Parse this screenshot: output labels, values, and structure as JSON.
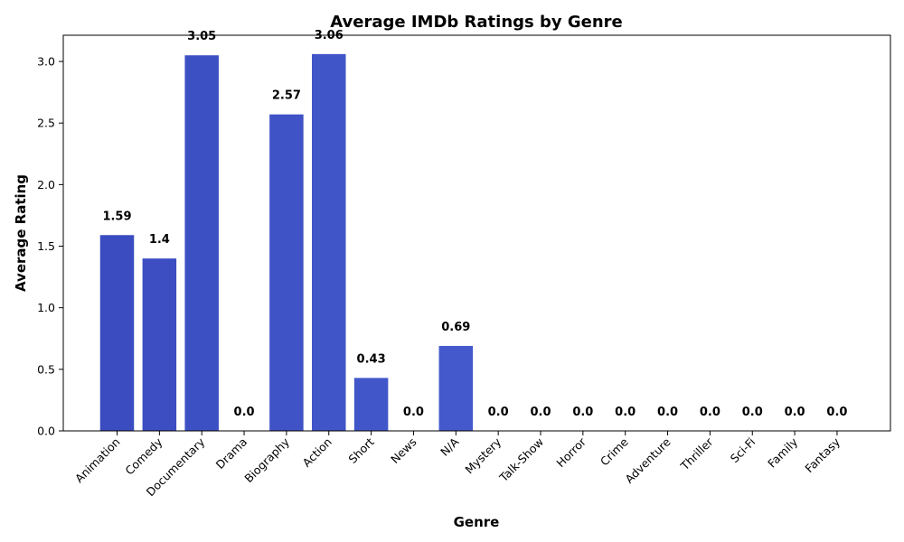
{
  "chart_data": {
    "type": "bar",
    "title": "Average IMDb Ratings by Genre",
    "xlabel": "Genre",
    "ylabel": "Average Rating",
    "categories": [
      "Animation",
      "Comedy",
      "Documentary",
      "Drama",
      "Biography",
      "Action",
      "Short",
      "News",
      "N/A",
      "Mystery",
      "Talk-Show",
      "Horror",
      "Crime",
      "Adventure",
      "Thriller",
      "Sci-Fi",
      "Family",
      "Fantasy"
    ],
    "values": [
      1.59,
      1.4,
      3.05,
      0.0,
      2.57,
      3.06,
      0.43,
      0.0,
      0.69,
      0.0,
      0.0,
      0.0,
      0.0,
      0.0,
      0.0,
      0.0,
      0.0,
      0.0
    ],
    "data_labels": [
      "1.59",
      "1.4",
      "3.05",
      "0.0",
      "2.57",
      "3.06",
      "0.43",
      "0.0",
      "0.69",
      "0.0",
      "0.0",
      "0.0",
      "0.0",
      "0.0",
      "0.0",
      "0.0",
      "0.0",
      "0.0"
    ],
    "yticks": [
      0.0,
      0.5,
      1.0,
      1.5,
      2.0,
      2.5,
      3.0
    ],
    "ytick_labels": [
      "0.0",
      "0.5",
      "1.0",
      "1.5",
      "2.0",
      "2.5",
      "3.0"
    ],
    "ylim": [
      0,
      3.213
    ],
    "grid": false,
    "legend": "none",
    "bar_colors": [
      "#3b4cc0",
      "#3c4ec2",
      "#3d50c3",
      "#3e51c5",
      "#3f53c6",
      "#4055c8",
      "#4157c9",
      "#4258ca",
      "#4359cc",
      "#445acc",
      "#455ccd",
      "#465dce",
      "#475fcf",
      "#4860d0",
      "#4962d1",
      "#4a63d3",
      "#4b64d4",
      "#4c66d6"
    ]
  }
}
